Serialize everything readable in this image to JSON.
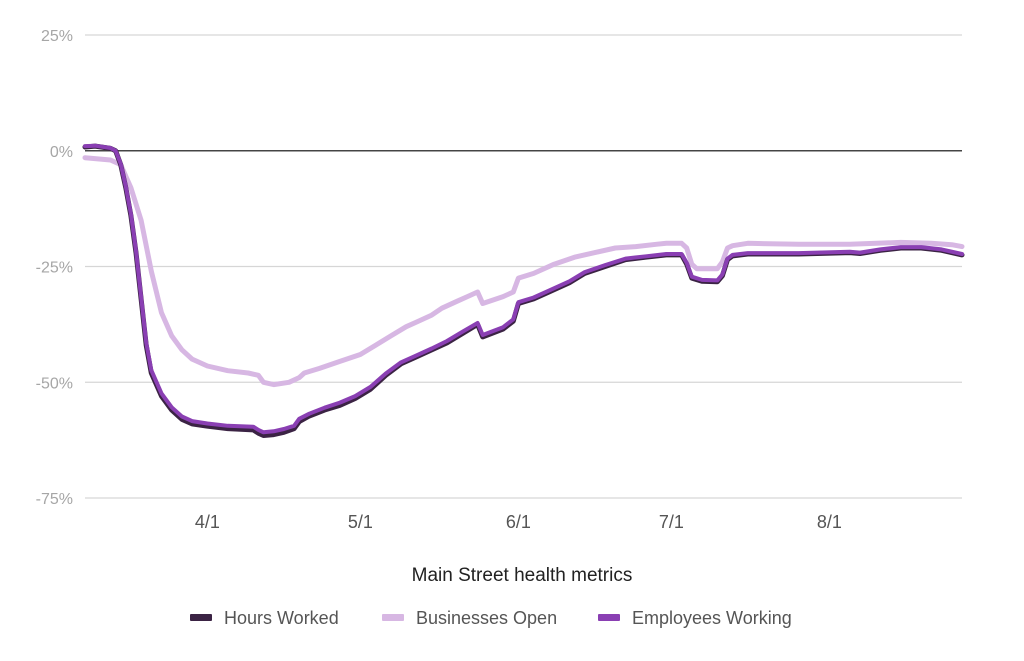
{
  "chart_data": {
    "type": "line",
    "title": "Main Street health metrics",
    "xlabel": "",
    "ylabel": "",
    "ylim": [
      -75,
      25
    ],
    "y_ticks": [
      {
        "value": 25,
        "label": "25%"
      },
      {
        "value": 0,
        "label": "0%"
      },
      {
        "value": -25,
        "label": "-25%"
      },
      {
        "value": -50,
        "label": "-50%"
      },
      {
        "value": -75,
        "label": "-75%"
      }
    ],
    "x_range_days": [
      0,
      172
    ],
    "x_ticks": [
      {
        "value": 24,
        "label": "4/1"
      },
      {
        "value": 54,
        "label": "5/1"
      },
      {
        "value": 85,
        "label": "6/1"
      },
      {
        "value": 115,
        "label": "7/1"
      },
      {
        "value": 146,
        "label": "8/1"
      }
    ],
    "grid": true,
    "zero_line": true,
    "legend_position": "bottom",
    "series": [
      {
        "name": "Businesses Open",
        "color": "#d7b7e3",
        "width": 5,
        "points": [
          [
            0,
            -1.5
          ],
          [
            5,
            -2
          ],
          [
            7,
            -3
          ],
          [
            9,
            -8
          ],
          [
            11,
            -15
          ],
          [
            13,
            -26
          ],
          [
            15,
            -35
          ],
          [
            17,
            -40
          ],
          [
            19,
            -43
          ],
          [
            21,
            -45
          ],
          [
            24,
            -46.5
          ],
          [
            28,
            -47.5
          ],
          [
            32,
            -48
          ],
          [
            34,
            -48.5
          ],
          [
            35,
            -50
          ],
          [
            37,
            -50.5
          ],
          [
            40,
            -50
          ],
          [
            42,
            -49
          ],
          [
            43,
            -48
          ],
          [
            46,
            -47
          ],
          [
            50,
            -45.5
          ],
          [
            54,
            -44
          ],
          [
            57,
            -42
          ],
          [
            60,
            -40
          ],
          [
            63,
            -38
          ],
          [
            65,
            -37
          ],
          [
            68,
            -35.5
          ],
          [
            70,
            -34
          ],
          [
            73,
            -32.5
          ],
          [
            75,
            -31.5
          ],
          [
            77,
            -30.5
          ],
          [
            78,
            -33
          ],
          [
            82,
            -31.5
          ],
          [
            84,
            -30.5
          ],
          [
            85,
            -27.5
          ],
          [
            88,
            -26.5
          ],
          [
            92,
            -24.5
          ],
          [
            96,
            -23
          ],
          [
            100,
            -22
          ],
          [
            104,
            -21
          ],
          [
            108,
            -20.7
          ],
          [
            112,
            -20.2
          ],
          [
            114,
            -20
          ],
          [
            117,
            -20
          ],
          [
            118,
            -21
          ],
          [
            119,
            -24.5
          ],
          [
            120,
            -25.5
          ],
          [
            124,
            -25.5
          ],
          [
            125,
            -24
          ],
          [
            126,
            -21
          ],
          [
            127,
            -20.5
          ],
          [
            130,
            -20
          ],
          [
            140,
            -20.2
          ],
          [
            150,
            -20.2
          ],
          [
            160,
            -19.8
          ],
          [
            166,
            -20
          ],
          [
            170,
            -20.3
          ],
          [
            172,
            -20.7
          ]
        ]
      },
      {
        "name": "Hours Worked",
        "color": "#3b2344",
        "width": 5,
        "points": [
          [
            0,
            0.8
          ],
          [
            2,
            1
          ],
          [
            5,
            0.5
          ],
          [
            6,
            0
          ],
          [
            7,
            -3
          ],
          [
            8,
            -8
          ],
          [
            9,
            -14
          ],
          [
            10,
            -22
          ],
          [
            11,
            -32
          ],
          [
            12,
            -42
          ],
          [
            13,
            -48
          ],
          [
            15,
            -53
          ],
          [
            17,
            -56
          ],
          [
            19,
            -58
          ],
          [
            21,
            -59
          ],
          [
            24,
            -59.5
          ],
          [
            28,
            -60
          ],
          [
            33,
            -60.3
          ],
          [
            34,
            -61
          ],
          [
            35,
            -61.5
          ],
          [
            37,
            -61.3
          ],
          [
            39,
            -60.8
          ],
          [
            41,
            -60
          ],
          [
            42,
            -58.5
          ],
          [
            44,
            -57.3
          ],
          [
            47,
            -56
          ],
          [
            50,
            -55
          ],
          [
            53,
            -53.5
          ],
          [
            56,
            -51.5
          ],
          [
            59,
            -48.5
          ],
          [
            62,
            -46
          ],
          [
            65,
            -44.5
          ],
          [
            68,
            -43
          ],
          [
            71,
            -41.5
          ],
          [
            74,
            -39.5
          ],
          [
            77,
            -37.5
          ],
          [
            78,
            -40.2
          ],
          [
            82,
            -38.5
          ],
          [
            84,
            -36.8
          ],
          [
            85,
            -33
          ],
          [
            88,
            -32
          ],
          [
            91,
            -30.5
          ],
          [
            95,
            -28.5
          ],
          [
            98,
            -26.5
          ],
          [
            102,
            -25
          ],
          [
            106,
            -23.5
          ],
          [
            110,
            -23
          ],
          [
            114,
            -22.5
          ],
          [
            117,
            -22.5
          ],
          [
            118,
            -24.5
          ],
          [
            119,
            -27.5
          ],
          [
            121,
            -28.2
          ],
          [
            124,
            -28.3
          ],
          [
            125,
            -27
          ],
          [
            126,
            -23.5
          ],
          [
            127,
            -22.7
          ],
          [
            130,
            -22.3
          ],
          [
            140,
            -22.3
          ],
          [
            150,
            -22
          ],
          [
            152,
            -22.2
          ],
          [
            156,
            -21.5
          ],
          [
            160,
            -21
          ],
          [
            164,
            -21
          ],
          [
            168,
            -21.5
          ],
          [
            172,
            -22.5
          ]
        ]
      },
      {
        "name": "Employees Working",
        "color": "#8a3fb3",
        "width": 4,
        "points": [
          [
            0,
            1
          ],
          [
            2,
            1.1
          ],
          [
            5,
            0.6
          ],
          [
            6,
            0
          ],
          [
            7,
            -2.8
          ],
          [
            8,
            -7.7
          ],
          [
            9,
            -13.6
          ],
          [
            10,
            -21.6
          ],
          [
            11,
            -31.5
          ],
          [
            12,
            -41.4
          ],
          [
            13,
            -47.4
          ],
          [
            15,
            -52.4
          ],
          [
            17,
            -55.4
          ],
          [
            19,
            -57.4
          ],
          [
            21,
            -58.4
          ],
          [
            24,
            -58.9
          ],
          [
            28,
            -59.4
          ],
          [
            33,
            -59.6
          ],
          [
            34,
            -60.3
          ],
          [
            35,
            -60.8
          ],
          [
            37,
            -60.6
          ],
          [
            39,
            -60.1
          ],
          [
            41,
            -59.4
          ],
          [
            42,
            -57.9
          ],
          [
            44,
            -56.8
          ],
          [
            47,
            -55.5
          ],
          [
            50,
            -54.4
          ],
          [
            53,
            -53
          ],
          [
            56,
            -51
          ],
          [
            59,
            -48.1
          ],
          [
            62,
            -45.7
          ],
          [
            65,
            -44.2
          ],
          [
            68,
            -42.7
          ],
          [
            71,
            -41.1
          ],
          [
            74,
            -39.1
          ],
          [
            77,
            -37.2
          ],
          [
            78,
            -39.8
          ],
          [
            82,
            -38.1
          ],
          [
            84,
            -36.4
          ],
          [
            85,
            -32.7
          ],
          [
            88,
            -31.7
          ],
          [
            91,
            -30.2
          ],
          [
            95,
            -28.2
          ],
          [
            98,
            -26.2
          ],
          [
            102,
            -24.7
          ],
          [
            106,
            -23.3
          ],
          [
            110,
            -22.8
          ],
          [
            114,
            -22.3
          ],
          [
            117,
            -22.3
          ],
          [
            118,
            -24.2
          ],
          [
            119,
            -27.2
          ],
          [
            121,
            -27.9
          ],
          [
            124,
            -28
          ],
          [
            125,
            -26.7
          ],
          [
            126,
            -23.3
          ],
          [
            127,
            -22.5
          ],
          [
            130,
            -22.1
          ],
          [
            140,
            -22.1
          ],
          [
            150,
            -21.8
          ],
          [
            152,
            -22
          ],
          [
            156,
            -21.3
          ],
          [
            160,
            -20.8
          ],
          [
            164,
            -20.8
          ],
          [
            168,
            -21.3
          ],
          [
            172,
            -22.3
          ]
        ]
      }
    ]
  },
  "legend": [
    {
      "name": "Hours Worked",
      "color": "#3b2344"
    },
    {
      "name": "Businesses Open",
      "color": "#d7b7e3"
    },
    {
      "name": "Employees Working",
      "color": "#8a3fb3"
    }
  ]
}
